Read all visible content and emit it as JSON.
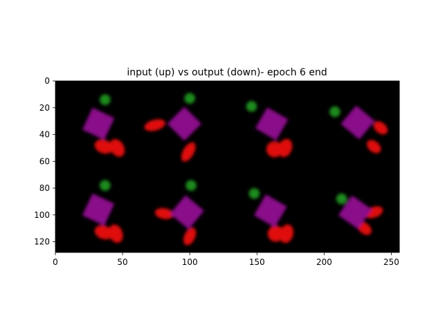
{
  "chart_data": {
    "type": "heatmap",
    "title": "input (up) vs output (down)- epoch 6 end",
    "xlabel": "",
    "ylabel": "",
    "xlim": [
      0,
      256
    ],
    "ylim": [
      128,
      0
    ],
    "xticks": [
      0,
      50,
      100,
      150,
      200,
      250
    ],
    "yticks": [
      0,
      20,
      40,
      60,
      80,
      100,
      120
    ],
    "grid": false,
    "background": "#000000",
    "image_grid": {
      "rows": 2,
      "cols": 4,
      "row_labels": [
        "input",
        "output"
      ]
    },
    "colors": {
      "square": "#8a0a8a",
      "green_dot": "#1f8a1f",
      "red_blob": "#e01010"
    },
    "tiles": [
      {
        "row": 0,
        "col": 0,
        "square": {
          "cx": 32,
          "cy": 32,
          "size": 18,
          "rot": 25
        },
        "green": {
          "cx": 37,
          "cy": 14,
          "r": 4
        },
        "red": [
          {
            "cx": 36,
            "cy": 49,
            "rx": 7,
            "ry": 5,
            "rot": 20
          },
          {
            "cx": 46,
            "cy": 50,
            "rx": 5,
            "ry": 7,
            "rot": -30
          }
        ]
      },
      {
        "row": 0,
        "col": 1,
        "square": {
          "cx": 96,
          "cy": 32,
          "size": 18,
          "rot": 45
        },
        "green": {
          "cx": 100,
          "cy": 13,
          "r": 4
        },
        "red": [
          {
            "cx": 74,
            "cy": 33,
            "rx": 8,
            "ry": 4,
            "rot": -15
          },
          {
            "cx": 99,
            "cy": 53,
            "rx": 4,
            "ry": 8,
            "rot": 30
          }
        ]
      },
      {
        "row": 0,
        "col": 2,
        "square": {
          "cx": 161,
          "cy": 32,
          "size": 18,
          "rot": 30
        },
        "green": {
          "cx": 146,
          "cy": 19,
          "r": 4
        },
        "red": [
          {
            "cx": 163,
            "cy": 51,
            "rx": 6,
            "ry": 6,
            "rot": 0
          },
          {
            "cx": 171,
            "cy": 50,
            "rx": 5,
            "ry": 7,
            "rot": 20
          }
        ]
      },
      {
        "row": 0,
        "col": 3,
        "square": {
          "cx": 225,
          "cy": 31,
          "size": 18,
          "rot": 40
        },
        "green": {
          "cx": 208,
          "cy": 23,
          "r": 4
        },
        "red": [
          {
            "cx": 242,
            "cy": 35,
            "rx": 6,
            "ry": 4,
            "rot": 40
          },
          {
            "cx": 237,
            "cy": 49,
            "rx": 6,
            "ry": 4,
            "rot": 40
          }
        ]
      },
      {
        "row": 1,
        "col": 0,
        "square": {
          "cx": 32,
          "cy": 96,
          "size": 18,
          "rot": 25
        },
        "green": {
          "cx": 37,
          "cy": 78,
          "r": 4
        },
        "red": [
          {
            "cx": 36,
            "cy": 113,
            "rx": 7,
            "ry": 5,
            "rot": 20
          },
          {
            "cx": 45,
            "cy": 114,
            "rx": 5,
            "ry": 7,
            "rot": -20
          }
        ]
      },
      {
        "row": 1,
        "col": 1,
        "square": {
          "cx": 98,
          "cy": 98,
          "size": 18,
          "rot": 40
        },
        "green": {
          "cx": 101,
          "cy": 78,
          "r": 4
        },
        "red": [
          {
            "cx": 81,
            "cy": 99,
            "rx": 7,
            "ry": 4,
            "rot": 10
          },
          {
            "cx": 100,
            "cy": 116,
            "rx": 4,
            "ry": 7,
            "rot": 25
          }
        ]
      },
      {
        "row": 1,
        "col": 2,
        "square": {
          "cx": 160,
          "cy": 97,
          "size": 18,
          "rot": 30
        },
        "green": {
          "cx": 148,
          "cy": 84,
          "r": 4
        },
        "red": [
          {
            "cx": 164,
            "cy": 114,
            "rx": 6,
            "ry": 6,
            "rot": 0
          },
          {
            "cx": 172,
            "cy": 114,
            "rx": 5,
            "ry": 7,
            "rot": 15
          }
        ]
      },
      {
        "row": 1,
        "col": 3,
        "square": {
          "cx": 223,
          "cy": 98,
          "size": 18,
          "rot": 35
        },
        "green": {
          "cx": 213,
          "cy": 88,
          "r": 4
        },
        "red": [
          {
            "cx": 237,
            "cy": 98,
            "rx": 7,
            "ry": 4,
            "rot": -20
          },
          {
            "cx": 230,
            "cy": 110,
            "rx": 6,
            "ry": 4,
            "rot": 40
          }
        ]
      }
    ]
  }
}
